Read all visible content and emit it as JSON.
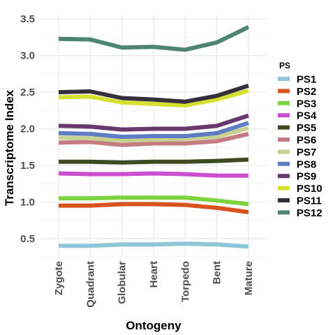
{
  "chart_data": {
    "type": "line",
    "title": "",
    "xlabel": "Ontogeny",
    "ylabel": "Transcriptome Index",
    "categories": [
      "Zygote",
      "Quadrant",
      "Globular",
      "Heart",
      "Torpedo",
      "Bent",
      "Mature"
    ],
    "y_ticks": [
      "0.5",
      "1.0",
      "1.5",
      "2.0",
      "2.5",
      "3.0",
      "3.5"
    ],
    "ylim": [
      0.25,
      3.55
    ],
    "grid": true,
    "legend": {
      "title": "PS",
      "position": "right"
    },
    "series": [
      {
        "name": "PS1",
        "color": "#8ec7d9",
        "values": [
          0.4,
          0.4,
          0.42,
          0.42,
          0.43,
          0.42,
          0.39
        ]
      },
      {
        "name": "PS2",
        "color": "#d9531e",
        "values": [
          0.95,
          0.95,
          0.97,
          0.97,
          0.96,
          0.92,
          0.86
        ]
      },
      {
        "name": "PS3",
        "color": "#7ed43e",
        "values": [
          1.05,
          1.05,
          1.06,
          1.06,
          1.06,
          1.02,
          0.97
        ]
      },
      {
        "name": "PS4",
        "color": "#cc4fcf",
        "values": [
          1.39,
          1.38,
          1.38,
          1.39,
          1.38,
          1.36,
          1.36
        ]
      },
      {
        "name": "PS5",
        "color": "#3d4a22",
        "values": [
          1.55,
          1.55,
          1.54,
          1.55,
          1.55,
          1.56,
          1.58
        ]
      },
      {
        "name": "PS6",
        "color": "#c47b82",
        "values": [
          1.81,
          1.82,
          1.78,
          1.8,
          1.8,
          1.83,
          1.93
        ]
      },
      {
        "name": "PS7",
        "color": "#c9d18f",
        "values": [
          1.88,
          1.87,
          1.84,
          1.85,
          1.86,
          1.89,
          2.01
        ]
      },
      {
        "name": "PS8",
        "color": "#5e7ec4",
        "values": [
          1.94,
          1.93,
          1.89,
          1.9,
          1.9,
          1.94,
          2.08
        ]
      },
      {
        "name": "PS9",
        "color": "#68386e",
        "values": [
          2.04,
          2.03,
          1.99,
          2.0,
          2.0,
          2.04,
          2.18
        ]
      },
      {
        "name": "PS10",
        "color": "#d6e02e",
        "values": [
          2.43,
          2.44,
          2.36,
          2.34,
          2.32,
          2.4,
          2.52
        ]
      },
      {
        "name": "PS11",
        "color": "#36303d",
        "values": [
          2.5,
          2.51,
          2.42,
          2.4,
          2.37,
          2.45,
          2.59
        ]
      },
      {
        "name": "PS12",
        "color": "#4d8570",
        "values": [
          3.23,
          3.22,
          3.11,
          3.12,
          3.08,
          3.18,
          3.39
        ]
      }
    ]
  }
}
